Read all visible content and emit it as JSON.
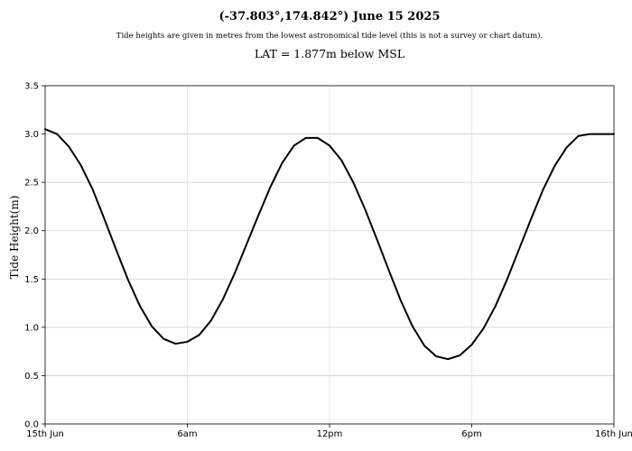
{
  "chart_data": {
    "type": "line",
    "title": "(-37.803°,174.842°) June 15 2025",
    "subtitle": "Tide heights are given in metres from the lowest astronomical tide level (this is not a survey or chart datum).",
    "subtitle2": "LAT = 1.877m below MSL",
    "xlabel": "",
    "ylabel": "Tide Height(m)",
    "xlim": [
      0,
      24
    ],
    "ylim": [
      0,
      3.5
    ],
    "x_ticks": [
      {
        "value": 0,
        "label": "15th Jun"
      },
      {
        "value": 6,
        "label": "6am"
      },
      {
        "value": 12,
        "label": "12pm"
      },
      {
        "value": 18,
        "label": "6pm"
      },
      {
        "value": 24,
        "label": "16th Jun"
      }
    ],
    "y_ticks": [
      {
        "value": 0,
        "label": "0.0"
      },
      {
        "value": 0.5,
        "label": "0.5"
      },
      {
        "value": 1.0,
        "label": "1.0"
      },
      {
        "value": 1.5,
        "label": "1.5"
      },
      {
        "value": 2.0,
        "label": "2.0"
      },
      {
        "value": 2.5,
        "label": "2.5"
      },
      {
        "value": 3.0,
        "label": "3.0"
      },
      {
        "value": 3.5,
        "label": "3.5"
      }
    ],
    "grid": true,
    "series": [
      {
        "color": "#000000",
        "x": [
          0,
          0.5,
          1,
          1.5,
          2,
          2.5,
          3,
          3.5,
          4,
          4.5,
          5,
          5.5,
          6,
          6.5,
          7,
          7.5,
          8,
          8.5,
          9,
          9.5,
          10,
          10.5,
          11,
          11.5,
          12,
          12.5,
          13,
          13.5,
          14,
          14.5,
          15,
          15.5,
          16,
          16.5,
          17,
          17.5,
          18,
          18.5,
          19,
          19.5,
          20,
          20.5,
          21,
          21.5,
          22,
          22.5,
          23,
          23.5,
          24
        ],
        "values": [
          3.05,
          3.0,
          2.87,
          2.68,
          2.43,
          2.12,
          1.8,
          1.49,
          1.22,
          1.01,
          0.88,
          0.83,
          0.85,
          0.92,
          1.07,
          1.29,
          1.56,
          1.86,
          2.16,
          2.45,
          2.7,
          2.88,
          2.96,
          2.96,
          2.88,
          2.73,
          2.5,
          2.22,
          1.91,
          1.59,
          1.28,
          1.01,
          0.81,
          0.7,
          0.67,
          0.71,
          0.82,
          0.99,
          1.22,
          1.5,
          1.81,
          2.12,
          2.42,
          2.67,
          2.86,
          2.98,
          3.0,
          3.0,
          3.0
        ]
      }
    ]
  }
}
